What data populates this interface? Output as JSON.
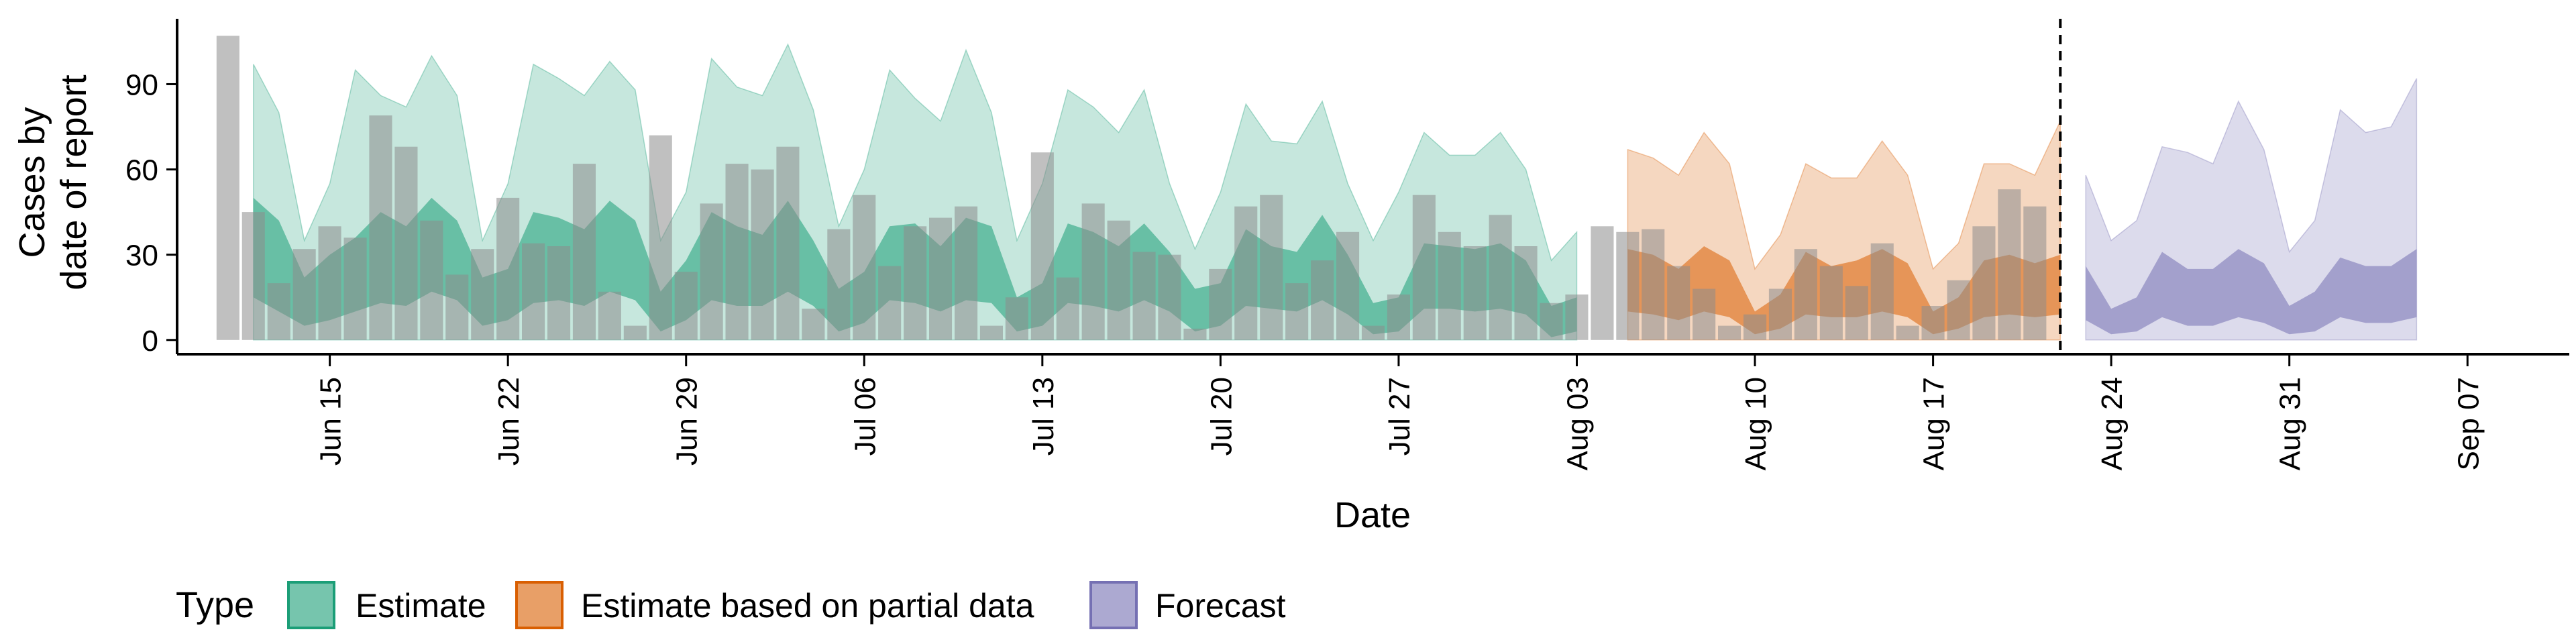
{
  "chart_data": {
    "type": "area",
    "title": "",
    "xlabel": "Date",
    "ylabel_lines": [
      "Cases by",
      "date of report"
    ],
    "x_start": "2020-06-11",
    "xlim": [
      "2020-06-09",
      "2020-09-11"
    ],
    "ylim": [
      -5,
      113
    ],
    "yticks": [
      0,
      30,
      60,
      90
    ],
    "xticks": [
      {
        "date": "2020-06-15",
        "label": "Jun 15"
      },
      {
        "date": "2020-06-22",
        "label": "Jun 22"
      },
      {
        "date": "2020-06-29",
        "label": "Jun 29"
      },
      {
        "date": "2020-07-06",
        "label": "Jul 06"
      },
      {
        "date": "2020-07-13",
        "label": "Jul 13"
      },
      {
        "date": "2020-07-20",
        "label": "Jul 20"
      },
      {
        "date": "2020-07-27",
        "label": "Jul 27"
      },
      {
        "date": "2020-08-03",
        "label": "Aug 03"
      },
      {
        "date": "2020-08-10",
        "label": "Aug 10"
      },
      {
        "date": "2020-08-17",
        "label": "Aug 17"
      },
      {
        "date": "2020-08-24",
        "label": "Aug 24"
      },
      {
        "date": "2020-08-31",
        "label": "Aug 31"
      },
      {
        "date": "2020-09-07",
        "label": "Sep 07"
      }
    ],
    "vline_date": "2020-08-22",
    "reported_cases": [
      107,
      45,
      20,
      32,
      40,
      36,
      79,
      68,
      42,
      23,
      32,
      50,
      34,
      33,
      62,
      17,
      5,
      72,
      24,
      48,
      62,
      60,
      68,
      11,
      39,
      51,
      26,
      40,
      43,
      47,
      5,
      15,
      66,
      22,
      48,
      42,
      31,
      30,
      4,
      25,
      47,
      51,
      20,
      28,
      38,
      5,
      16,
      51,
      38,
      33,
      44,
      33,
      13,
      16,
      40,
      38,
      39,
      26,
      18,
      5,
      9,
      18,
      32,
      26,
      19,
      34,
      5,
      12,
      21,
      40,
      53,
      47
    ],
    "series": [
      {
        "name": "Estimate",
        "color": "#1B9E77",
        "start_index": 1,
        "outer_upper": [
          97,
          80,
          35,
          55,
          95,
          86,
          82,
          100,
          86,
          35,
          55,
          97,
          92,
          86,
          98,
          88,
          35,
          52,
          99,
          89,
          86,
          104,
          81,
          40,
          60,
          95,
          85,
          77,
          102,
          80,
          35,
          55,
          88,
          82,
          73,
          88,
          55,
          32,
          52,
          83,
          70,
          69,
          84,
          55,
          35,
          52,
          73,
          65,
          65,
          73,
          60,
          28,
          38
        ],
        "outer_lower": [
          0,
          0,
          0,
          0,
          0,
          0,
          0,
          0,
          0,
          0,
          0,
          0,
          0,
          0,
          0,
          0,
          0,
          0,
          0,
          0,
          0,
          0,
          0,
          0,
          0,
          0,
          0,
          0,
          0,
          0,
          0,
          0,
          0,
          0,
          0,
          0,
          0,
          0,
          0,
          0,
          0,
          0,
          0,
          0,
          0,
          0,
          0,
          0,
          0,
          0,
          0,
          0,
          0
        ],
        "inner_upper": [
          50,
          42,
          22,
          30,
          36,
          45,
          40,
          50,
          42,
          22,
          25,
          45,
          43,
          39,
          49,
          42,
          17,
          28,
          45,
          40,
          37,
          49,
          35,
          18,
          24,
          40,
          41,
          33,
          43,
          40,
          15,
          20,
          41,
          38,
          33,
          41,
          31,
          18,
          20,
          39,
          33,
          31,
          44,
          30,
          13,
          15,
          34,
          33,
          32,
          34,
          28,
          12,
          15
        ],
        "inner_lower": [
          15,
          10,
          5,
          7,
          10,
          13,
          12,
          17,
          14,
          5,
          7,
          13,
          14,
          12,
          17,
          14,
          3,
          7,
          14,
          12,
          12,
          17,
          12,
          3,
          6,
          14,
          13,
          10,
          14,
          13,
          3,
          5,
          13,
          12,
          10,
          14,
          10,
          3,
          5,
          12,
          11,
          10,
          14,
          9,
          2,
          3,
          11,
          11,
          10,
          11,
          9,
          1,
          3
        ]
      },
      {
        "name": "Estimate based on partial data",
        "color": "#D95F02",
        "start_index": 55,
        "outer_upper": [
          67,
          64,
          58,
          73,
          62,
          25,
          37,
          62,
          57,
          57,
          70,
          58,
          25,
          34,
          62,
          62,
          58,
          77
        ],
        "outer_lower": [
          0,
          0,
          0,
          0,
          0,
          0,
          0,
          0,
          0,
          0,
          0,
          0,
          0,
          0,
          0,
          0,
          0,
          0
        ],
        "inner_upper": [
          32,
          30,
          25,
          33,
          28,
          10,
          16,
          31,
          26,
          28,
          32,
          27,
          10,
          15,
          28,
          30,
          27,
          30
        ],
        "inner_lower": [
          10,
          9,
          7,
          10,
          8,
          2,
          4,
          9,
          8,
          8,
          10,
          8,
          2,
          4,
          8,
          9,
          8,
          9
        ]
      },
      {
        "name": "Forecast",
        "color": "#7570B3",
        "start_index": 73,
        "outer_upper": [
          58,
          35,
          42,
          68,
          66,
          62,
          84,
          67,
          31,
          42,
          81,
          73,
          75,
          92
        ],
        "outer_lower": [
          0,
          0,
          0,
          0,
          0,
          0,
          0,
          0,
          0,
          0,
          0,
          0,
          0,
          0
        ],
        "inner_upper": [
          26,
          11,
          15,
          31,
          25,
          25,
          32,
          27,
          12,
          17,
          29,
          26,
          26,
          32
        ],
        "inner_lower": [
          7,
          2,
          3,
          8,
          5,
          5,
          8,
          6,
          2,
          3,
          8,
          6,
          6,
          8
        ]
      }
    ],
    "legend": {
      "title": "Type",
      "position": "bottom",
      "items": [
        {
          "label": "Estimate",
          "color": "#1B9E77"
        },
        {
          "label": "Estimate based on partial data",
          "color": "#D95F02"
        },
        {
          "label": "Forecast",
          "color": "#7570B3"
        }
      ]
    }
  }
}
